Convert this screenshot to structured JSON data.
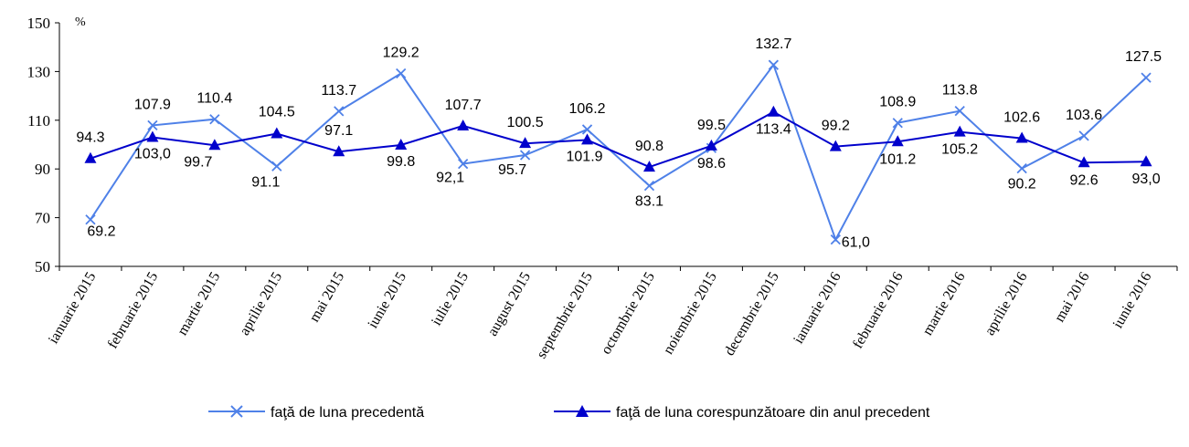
{
  "chart_data": {
    "type": "line",
    "unit_label": "%",
    "ylim": [
      50,
      150
    ],
    "yticks": [
      50,
      70,
      90,
      110,
      130,
      150
    ],
    "categories": [
      "ianuarie 2015",
      "februarie 2015",
      "martie 2015",
      "aprilie 2015",
      "mai 2015",
      "iunie 2015",
      "iulie 2015",
      "august 2015",
      "septembrie 2015",
      "octombrie 2015",
      "noiembrie 2015",
      "decembrie 2015",
      "ianuarie 2016",
      "februarie 2016",
      "martie 2016",
      "aprilie 2016",
      "mai 2016",
      "iunie 2016"
    ],
    "series": [
      {
        "name": "faţă de luna precedentă",
        "color": "#4f81e8",
        "marker": "x",
        "values": [
          69.2,
          107.9,
          110.4,
          91.1,
          113.7,
          129.2,
          92.1,
          95.7,
          106.2,
          83.1,
          98.6,
          132.7,
          61.0,
          108.9,
          113.8,
          90.2,
          103.6,
          127.5
        ],
        "labels": [
          "69.2",
          "107.9",
          "110.4",
          "91.1",
          "113.7",
          "129.2",
          "92,1",
          "95.7",
          "106.2",
          "83.1",
          "98.6",
          "132.7",
          "61,0",
          "108.9",
          "113.8",
          "90.2",
          "103.6",
          "127.5"
        ]
      },
      {
        "name": "faţă de luna corespunzătoare din anul precedent",
        "color": "#0000cc",
        "marker": "triangle",
        "values": [
          94.3,
          103.0,
          99.7,
          104.5,
          97.1,
          99.8,
          107.7,
          100.5,
          101.9,
          90.8,
          99.5,
          113.4,
          99.2,
          101.2,
          105.2,
          102.6,
          92.6,
          93.0
        ],
        "labels": [
          "94.3",
          "103,0",
          "99.7",
          "104.5",
          "97.1",
          "99.8",
          "107.7",
          "100.5",
          "101.9",
          "90.8",
          "99.5",
          "113.4",
          "99.2",
          "101.2",
          "105.2",
          "102.6",
          "92.6",
          "93,0"
        ]
      }
    ],
    "grid": false,
    "legend": "bottom"
  }
}
